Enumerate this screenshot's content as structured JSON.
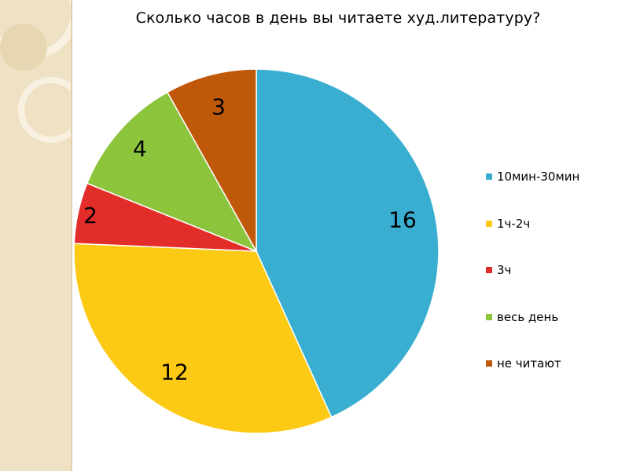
{
  "chart_data": {
    "type": "pie",
    "title": "Сколько часов в день вы читаете худ.литературу?",
    "categories": [
      "10мин-30мин",
      "1ч-2ч",
      "3ч",
      "весь день",
      "не читают"
    ],
    "values": [
      16,
      12,
      2,
      4,
      3
    ],
    "data_labels": [
      "16",
      "12",
      "2",
      "4",
      "3"
    ],
    "colors": [
      "#3aaed1",
      "#fcc914",
      "#e32d2a",
      "#8cc43c",
      "#c0580a"
    ],
    "legend_position": "right",
    "start_angle": "top",
    "direction": "clockwise"
  }
}
